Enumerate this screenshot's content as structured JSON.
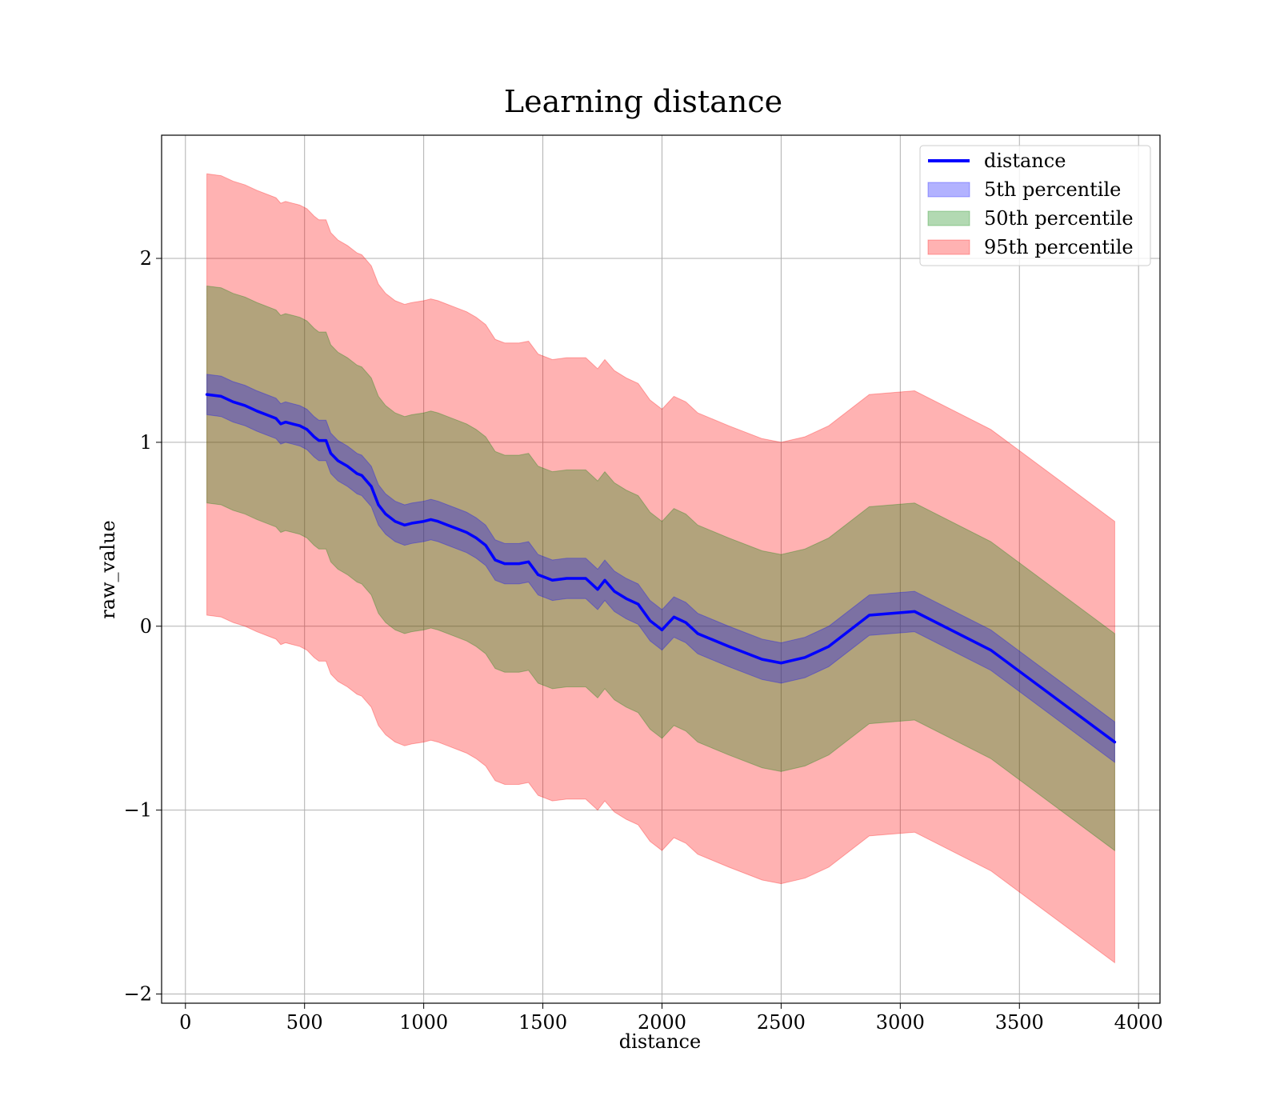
{
  "chart_data": {
    "type": "line",
    "title": "Learning distance",
    "xlabel": "distance",
    "ylabel": "raw_value",
    "xlim": [
      -100,
      4090
    ],
    "ylim": [
      -2.05,
      2.67
    ],
    "x_ticks": [
      0,
      500,
      1000,
      1500,
      2000,
      2500,
      3000,
      3500,
      4000
    ],
    "x_tick_labels": [
      "0",
      "500",
      "1000",
      "1500",
      "2000",
      "2500",
      "3000",
      "3500",
      "4000"
    ],
    "y_ticks": [
      -2,
      -1,
      0,
      1,
      2
    ],
    "y_tick_labels": [
      "−2",
      "−1",
      "0",
      "1",
      "2"
    ],
    "grid": true,
    "legend_position": "top-right",
    "colors": {
      "line": "#0000ff",
      "band_5": "#0000ff",
      "band_50": "#008000",
      "band_95": "#ff0000"
    },
    "legend": [
      {
        "label": "distance",
        "kind": "line",
        "color": "#0000ff"
      },
      {
        "label": "5th percentile",
        "kind": "patch",
        "color": "#0000ff"
      },
      {
        "label": "50th percentile",
        "kind": "patch",
        "color": "#008000"
      },
      {
        "label": "95th percentile",
        "kind": "patch",
        "color": "#ff0000"
      }
    ],
    "x": [
      90,
      150,
      200,
      250,
      300,
      340,
      380,
      400,
      420,
      450,
      480,
      510,
      540,
      560,
      590,
      610,
      640,
      680,
      700,
      720,
      740,
      780,
      810,
      840,
      880,
      920,
      950,
      1000,
      1030,
      1060,
      1100,
      1140,
      1180,
      1220,
      1260,
      1300,
      1340,
      1400,
      1440,
      1480,
      1540,
      1600,
      1680,
      1730,
      1760,
      1800,
      1850,
      1900,
      1950,
      2000,
      2050,
      2100,
      2150,
      2280,
      2420,
      2500,
      2600,
      2700,
      2870,
      3060,
      3380,
      3900
    ],
    "y": [
      1.26,
      1.25,
      1.22,
      1.2,
      1.17,
      1.15,
      1.13,
      1.1,
      1.11,
      1.1,
      1.09,
      1.07,
      1.03,
      1.01,
      1.01,
      0.94,
      0.9,
      0.87,
      0.85,
      0.83,
      0.82,
      0.76,
      0.66,
      0.61,
      0.57,
      0.55,
      0.56,
      0.57,
      0.58,
      0.57,
      0.55,
      0.53,
      0.51,
      0.48,
      0.44,
      0.36,
      0.34,
      0.34,
      0.35,
      0.28,
      0.25,
      0.26,
      0.26,
      0.2,
      0.25,
      0.19,
      0.15,
      0.12,
      0.03,
      -0.02,
      0.05,
      0.02,
      -0.04,
      -0.11,
      -0.18,
      -0.2,
      -0.17,
      -0.11,
      0.06,
      0.08,
      -0.13,
      -0.63
    ],
    "series": [
      {
        "name": "distance",
        "role": "line"
      },
      {
        "name": "5th percentile",
        "role": "band",
        "half_width": 0.11
      },
      {
        "name": "50th percentile",
        "role": "band",
        "half_width": 0.59
      },
      {
        "name": "95th percentile",
        "role": "band",
        "half_width": 1.2
      }
    ]
  }
}
